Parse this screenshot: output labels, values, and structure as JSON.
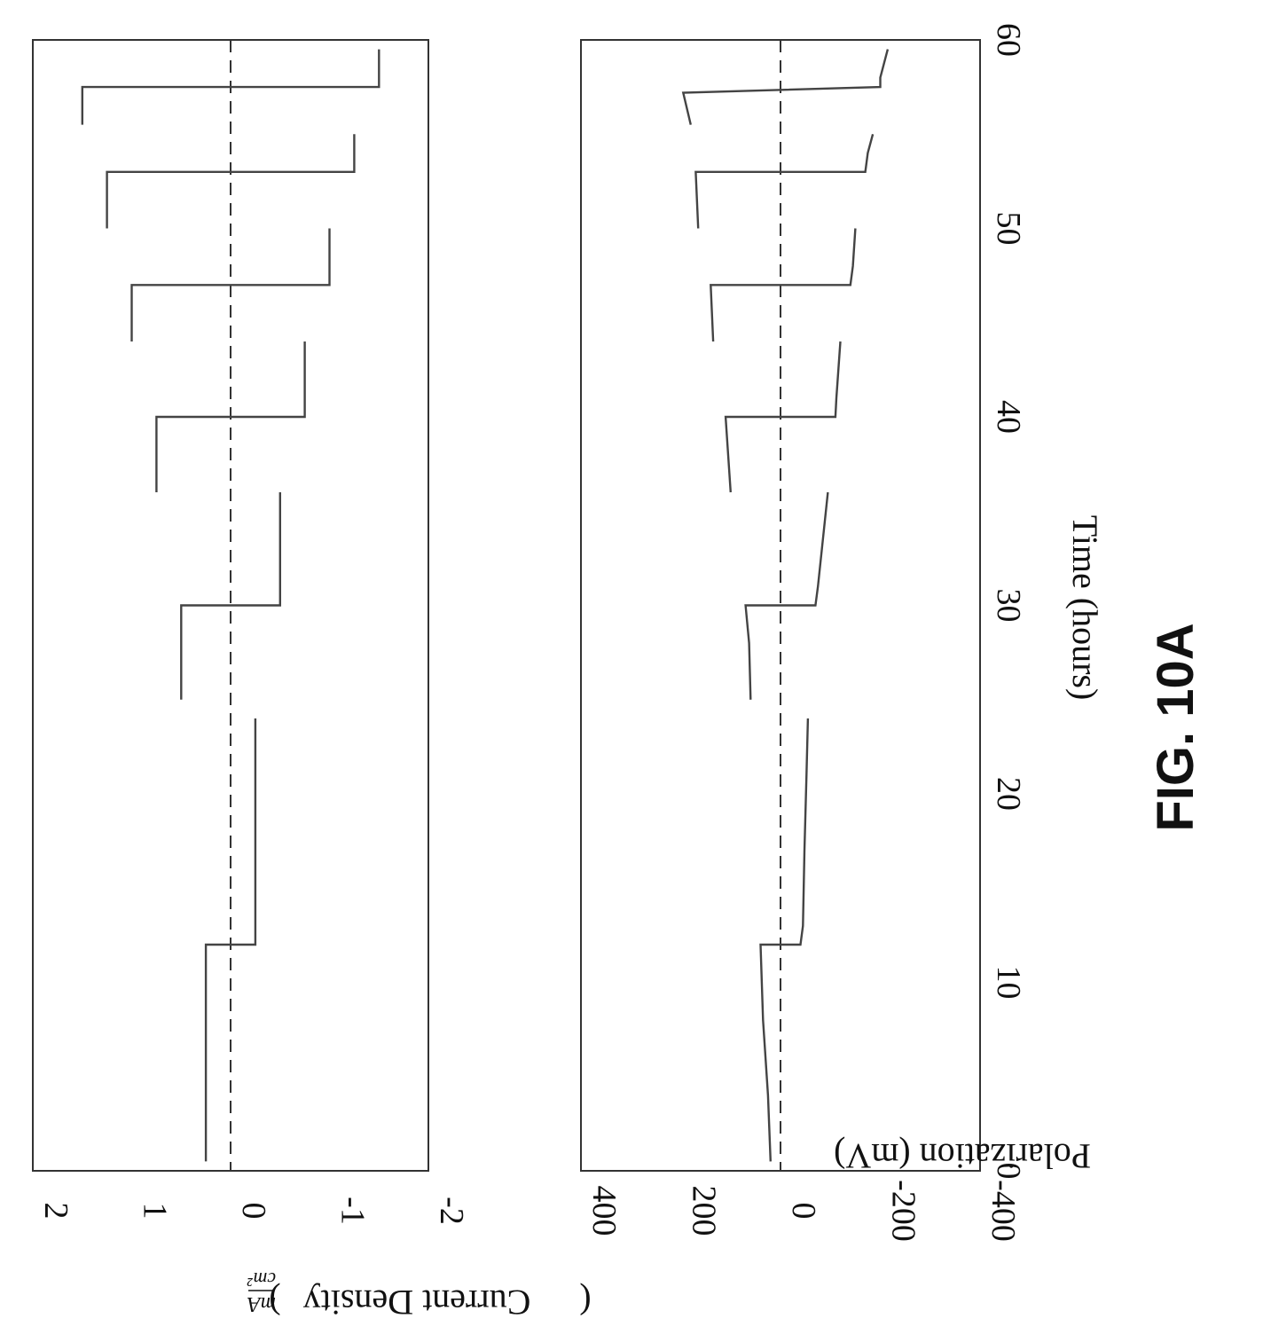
{
  "figure_label": "FIG. 10A",
  "chart_data": [
    {
      "type": "line",
      "ylabel": "Current Density (mA/cm²)",
      "ylabel_text": "Current  Density",
      "ylabel_unit_num": "mA",
      "ylabel_unit_den": "cm²",
      "ylim": [
        -2,
        2
      ],
      "yticks": [
        2,
        1,
        0,
        -1,
        -2
      ],
      "ytick_labels": [
        "2",
        "1",
        "0",
        "-1",
        "-2"
      ],
      "xlim": [
        0,
        60
      ],
      "reference_line": 0,
      "series": [
        {
          "x": [
            0.5,
            12,
            12,
            24,
            24,
            25,
            30,
            30,
            36,
            36,
            36,
            40,
            40,
            44,
            44,
            44,
            47,
            47,
            50,
            50,
            50,
            53,
            53,
            55,
            55,
            55.5,
            57.5,
            57.5,
            59.5
          ],
          "y": [
            0.25,
            0.25,
            -0.25,
            -0.25,
            null,
            0.5,
            0.5,
            -0.5,
            -0.5,
            null,
            0.75,
            0.75,
            -0.75,
            -0.75,
            null,
            1.0,
            1.0,
            -1.0,
            -1.0,
            null,
            1.25,
            1.25,
            -1.25,
            -1.25,
            null,
            1.5,
            1.5,
            -1.5,
            -1.5
          ]
        }
      ]
    },
    {
      "type": "line",
      "ylabel": "Polarization (mV)",
      "ylim": [
        -400,
        400
      ],
      "yticks": [
        400,
        200,
        0,
        -200,
        -400
      ],
      "ytick_labels": [
        "400",
        "200",
        "0",
        "-200",
        "-400"
      ],
      "xlim": [
        0,
        60
      ],
      "xticks": [
        0,
        10,
        20,
        30,
        40,
        50,
        60
      ],
      "xtick_labels": [
        "0",
        "10",
        "20",
        "30",
        "40",
        "50",
        "60"
      ],
      "xlabel": "Time (hours)",
      "reference_line": 0,
      "series": [
        {
          "x": [
            0.5,
            4,
            8,
            12,
            12,
            13,
            17,
            21,
            24,
            null,
            25,
            28,
            30,
            30,
            31,
            36,
            null,
            36,
            40,
            40,
            41,
            44,
            null,
            44,
            47,
            47,
            48,
            50,
            null,
            50,
            53,
            53,
            54,
            55,
            null,
            55.5,
            57.2,
            57.5,
            58,
            59.5
          ],
          "y": [
            20,
            25,
            35,
            40,
            -40,
            -45,
            -48,
            -52,
            -55,
            null,
            60,
            63,
            70,
            -70,
            -75,
            -95,
            null,
            100,
            110,
            -110,
            -112,
            -120,
            null,
            135,
            140,
            -140,
            -145,
            -150,
            null,
            165,
            170,
            -170,
            -175,
            -185,
            null,
            180,
            195,
            -200,
            -200,
            -215
          ]
        }
      ]
    }
  ]
}
